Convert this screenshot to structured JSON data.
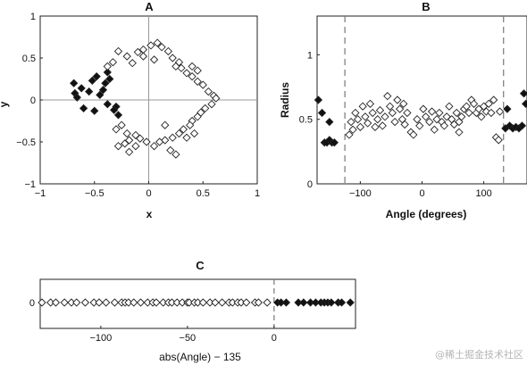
{
  "watermark": "@稀土掘金技术社区",
  "chart_data": [
    {
      "panel": "A",
      "type": "scatter",
      "title": "A",
      "xlabel": "x",
      "ylabel": "y",
      "xlim": [
        -1,
        1
      ],
      "ylim": [
        -1,
        1
      ],
      "xticks": [
        "−1",
        "−0.5",
        "0",
        "0.5",
        "1"
      ],
      "yticks": [
        "1",
        "0.5",
        "0",
        "−0.5",
        "−1"
      ],
      "series": [
        {
          "marker": "filled",
          "points": [
            [
              -0.69,
              0.2
            ],
            [
              -0.68,
              0.08
            ],
            [
              -0.66,
              0.03
            ],
            [
              -0.62,
              0.14
            ],
            [
              -0.55,
              0.1
            ],
            [
              -0.52,
              0.23
            ],
            [
              -0.48,
              0.28
            ],
            [
              -0.45,
              0.06
            ],
            [
              -0.42,
              0.12
            ],
            [
              -0.4,
              0.2
            ],
            [
              -0.38,
              0.33
            ],
            [
              -0.36,
              0.25
            ],
            [
              -0.3,
              -0.08
            ],
            [
              -0.32,
              -0.12
            ],
            [
              -0.28,
              -0.18
            ],
            [
              -0.5,
              -0.13
            ],
            [
              -0.6,
              -0.1
            ],
            [
              -0.38,
              -0.05
            ]
          ]
        },
        {
          "marker": "open",
          "points": [
            [
              -0.38,
              0.4
            ],
            [
              -0.33,
              0.45
            ],
            [
              -0.28,
              0.58
            ],
            [
              -0.2,
              0.52
            ],
            [
              -0.15,
              0.44
            ],
            [
              -0.1,
              0.57
            ],
            [
              -0.05,
              0.6
            ],
            [
              0.02,
              0.65
            ],
            [
              0.08,
              0.68
            ],
            [
              0.12,
              0.63
            ],
            [
              0.18,
              0.58
            ],
            [
              0.22,
              0.5
            ],
            [
              0.28,
              0.45
            ],
            [
              0.3,
              0.38
            ],
            [
              0.35,
              0.32
            ],
            [
              0.4,
              0.28
            ],
            [
              0.45,
              0.22
            ],
            [
              0.5,
              0.18
            ],
            [
              0.55,
              0.1
            ],
            [
              0.6,
              0.05
            ],
            [
              0.62,
              0.02
            ],
            [
              0.58,
              -0.05
            ],
            [
              0.52,
              -0.1
            ],
            [
              0.48,
              -0.15
            ],
            [
              0.45,
              -0.2
            ],
            [
              0.4,
              -0.25
            ],
            [
              0.38,
              -0.3
            ],
            [
              0.32,
              -0.35
            ],
            [
              0.28,
              -0.4
            ],
            [
              0.22,
              -0.45
            ],
            [
              0.15,
              -0.48
            ],
            [
              0.1,
              -0.5
            ],
            [
              0.05,
              -0.55
            ],
            [
              -0.02,
              -0.5
            ],
            [
              -0.08,
              -0.46
            ],
            [
              -0.12,
              -0.42
            ],
            [
              -0.18,
              -0.48
            ],
            [
              -0.22,
              -0.52
            ],
            [
              -0.28,
              -0.55
            ],
            [
              -0.3,
              -0.35
            ],
            [
              -0.25,
              -0.3
            ],
            [
              -0.2,
              -0.4
            ],
            [
              0.2,
              -0.6
            ],
            [
              0.25,
              -0.65
            ],
            [
              0.15,
              -0.3
            ],
            [
              0.42,
              -0.4
            ],
            [
              0.35,
              -0.45
            ],
            [
              0.25,
              0.4
            ],
            [
              -0.05,
              0.52
            ],
            [
              0.05,
              0.48
            ],
            [
              -0.18,
              -0.62
            ],
            [
              -0.12,
              -0.55
            ],
            [
              0.4,
              0.4
            ],
            [
              0.45,
              0.35
            ]
          ]
        }
      ]
    },
    {
      "panel": "B",
      "type": "scatter",
      "title": "B",
      "xlabel": "Angle (degrees)",
      "ylabel": "Radius",
      "xlim": [
        -170,
        170
      ],
      "ylim": [
        0,
        1.3
      ],
      "xticks": [
        "−100",
        "0",
        "100"
      ],
      "yticks": [
        "1",
        "0.5",
        "0"
      ],
      "vlines": [
        -125,
        132
      ],
      "series": [
        {
          "marker": "filled",
          "points": [
            [
              -168,
              0.65
            ],
            [
              -162,
              0.55
            ],
            [
              -158,
              0.32
            ],
            [
              -154,
              0.32
            ],
            [
              -150,
              0.34
            ],
            [
              -146,
              0.32
            ],
            [
              -142,
              0.32
            ],
            [
              -150,
              0.48
            ],
            [
              135,
              0.43
            ],
            [
              138,
              0.58
            ],
            [
              142,
              0.45
            ],
            [
              147,
              0.43
            ],
            [
              152,
              0.44
            ],
            [
              157,
              0.43
            ],
            [
              162,
              0.45
            ],
            [
              165,
              0.7
            ],
            [
              168,
              0.62
            ]
          ]
        },
        {
          "marker": "open",
          "points": [
            [
              -118,
              0.38
            ],
            [
              -115,
              0.48
            ],
            [
              -112,
              0.42
            ],
            [
              -108,
              0.55
            ],
            [
              -104,
              0.5
            ],
            [
              -100,
              0.44
            ],
            [
              -96,
              0.6
            ],
            [
              -92,
              0.52
            ],
            [
              -88,
              0.47
            ],
            [
              -84,
              0.62
            ],
            [
              -80,
              0.55
            ],
            [
              -76,
              0.44
            ],
            [
              -72,
              0.5
            ],
            [
              -68,
              0.57
            ],
            [
              -64,
              0.45
            ],
            [
              -60,
              0.52
            ],
            [
              -56,
              0.68
            ],
            [
              -52,
              0.6
            ],
            [
              -48,
              0.55
            ],
            [
              -44,
              0.48
            ],
            [
              -40,
              0.65
            ],
            [
              -36,
              0.58
            ],
            [
              -32,
              0.5
            ],
            [
              -28,
              0.46
            ],
            [
              -24,
              0.55
            ],
            [
              -18,
              0.4
            ],
            [
              -14,
              0.38
            ],
            [
              -8,
              0.5
            ],
            [
              -4,
              0.45
            ],
            [
              2,
              0.58
            ],
            [
              6,
              0.52
            ],
            [
              12,
              0.48
            ],
            [
              16,
              0.56
            ],
            [
              20,
              0.42
            ],
            [
              24,
              0.5
            ],
            [
              28,
              0.55
            ],
            [
              32,
              0.48
            ],
            [
              36,
              0.45
            ],
            [
              40,
              0.52
            ],
            [
              44,
              0.6
            ],
            [
              48,
              0.5
            ],
            [
              52,
              0.46
            ],
            [
              56,
              0.55
            ],
            [
              60,
              0.48
            ],
            [
              64,
              0.52
            ],
            [
              68,
              0.58
            ],
            [
              72,
              0.6
            ],
            [
              76,
              0.55
            ],
            [
              80,
              0.65
            ],
            [
              84,
              0.62
            ],
            [
              88,
              0.55
            ],
            [
              92,
              0.58
            ],
            [
              96,
              0.52
            ],
            [
              100,
              0.6
            ],
            [
              104,
              0.56
            ],
            [
              108,
              0.62
            ],
            [
              112,
              0.55
            ],
            [
              116,
              0.65
            ],
            [
              120,
              0.36
            ],
            [
              124,
              0.34
            ],
            [
              126,
              0.56
            ],
            [
              -30,
              0.62
            ],
            [
              60,
              0.4
            ]
          ]
        }
      ]
    },
    {
      "panel": "C",
      "type": "scatter",
      "title": "C",
      "xlabel": "abs(Angle) − 135",
      "ylabel": "",
      "xlim": [
        -135,
        47
      ],
      "xticks": [
        "−100",
        "−50",
        "0"
      ],
      "yticks": [
        "0"
      ],
      "vlines": [
        0
      ],
      "series": [
        {
          "marker": "open",
          "x": [
            -134,
            -129,
            -126,
            -121,
            -117,
            -114,
            -109,
            -104,
            -101,
            -97,
            -92,
            -88,
            -86,
            -84,
            -81,
            -77,
            -73,
            -70,
            -68,
            -64,
            -61,
            -59,
            -56,
            -53,
            -50,
            -49,
            -46,
            -44,
            -41,
            -37,
            -34,
            -30,
            -26,
            -24,
            -21,
            -19,
            -16,
            -11,
            -9,
            -4
          ]
        },
        {
          "marker": "filled",
          "x": [
            2,
            4,
            7,
            14,
            17,
            21,
            24,
            27,
            29,
            31,
            33,
            37,
            39,
            44
          ]
        }
      ]
    }
  ]
}
